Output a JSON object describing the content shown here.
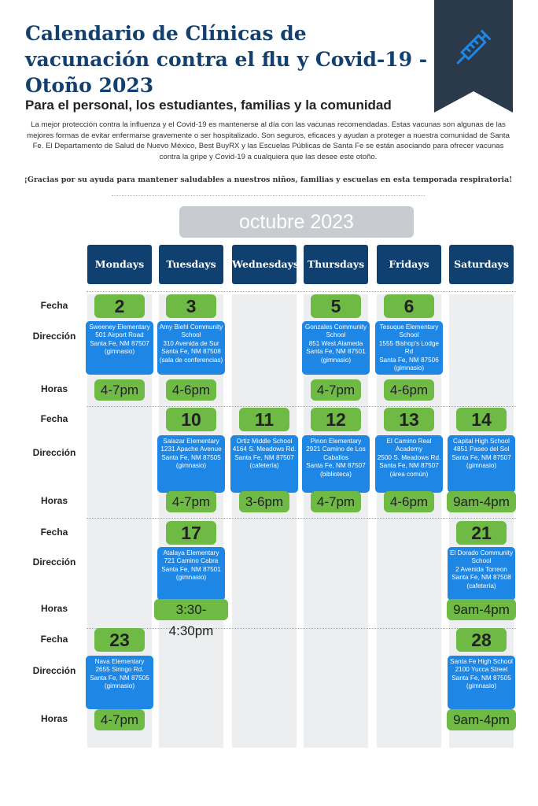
{
  "header": {
    "title": "Calendario de Clínicas de vacunación contra el flu y Covid-19 - Otoño 2023",
    "icon": "syringe-icon",
    "subtitle": "Para el personal, los estudiantes, familias y la comunidad",
    "intro": "La mejor protección contra la influenza y el Covid-19 es mantenerse al día con las vacunas recomendadas. Estas vacunas son algunas de las mejores formas de evitar enfermarse gravemente o ser hospitalizado. Son seguros, eficaces y ayudan a proteger a nuestra comunidad de Santa Fe. El Departamento de Salud de Nuevo México, Best BuyRX y las Escuelas Públicas de Santa Fe se están asociando para ofrecer vacunas contra la gripe y Covid-19 a cualquiera que las desee este otoño.",
    "thanks": "¡Gracias por su ayuda para mantener saludables a nuestros niños, familias y escuelas en esta temporada respiratoria!"
  },
  "calendar": {
    "month": "octubre 2023",
    "days": [
      "Mondays",
      "Tuesdays",
      "Wednesdays",
      "Thursdays",
      "Fridays",
      "Saturdays"
    ],
    "row_labels": {
      "date": "Fecha",
      "address": "Dirección",
      "hours": "Horas"
    },
    "weeks": [
      [
        {
          "day": "Mondays",
          "date": "2",
          "address": "Sweeney Elementary\n501 Airport Road\nSanta Fe, NM 87507\n(gimnasio)",
          "hours": "4-7pm"
        },
        {
          "day": "Tuesdays",
          "date": "3",
          "address": "Amy Biehl Community School\n310 Avenida de Sur\nSanta Fe, NM 87508\n(sala de conferencias)",
          "hours": "4-6pm"
        },
        {
          "day": "Thursdays",
          "date": "5",
          "address": "Gonzales Community School\n851 West Alameda\nSanta Fe, NM 87501\n(gimnasio)",
          "hours": "4-7pm"
        },
        {
          "day": "Fridays",
          "date": "6",
          "address": "Tesuque Elementary School\n1555 Bishop's Lodge Rd\nSanta Fe, NM 87506\n(gimnasio)",
          "hours": "4-6pm"
        }
      ],
      [
        {
          "day": "Tuesdays",
          "date": "10",
          "address": "Salazar Elementary\n1231 Apache Avenue\nSanta Fe, NM 87505\n(gimnasio)",
          "hours": "4-7pm"
        },
        {
          "day": "Wednesdays",
          "date": "11",
          "address": "Ortiz Middle School\n4164 S. Meadows Rd.\nSanta Fe, NM 87507\n(cafetería)",
          "hours": "3-6pm"
        },
        {
          "day": "Thursdays",
          "date": "12",
          "address": "Pinon Elementary\n2921 Camino de Los Caballos\nSanta Fe, NM 87507\n(biblioteca)",
          "hours": "4-7pm"
        },
        {
          "day": "Fridays",
          "date": "13",
          "address": "El Camino Real Academy\n2500 S. Meadows Rd.\nSanta Fe, NM 87507\n(área común)",
          "hours": "4-6pm"
        },
        {
          "day": "Saturdays",
          "date": "14",
          "address": "Capital High School\n4851 Paseo del Sol\nSanta Fe, NM 87507\n(gimnasio)",
          "hours": "9am-4pm"
        }
      ],
      [
        {
          "day": "Tuesdays",
          "date": "17",
          "address": "Atalaya Elementary\n721 Camino Cabra\nSanta Fe, NM 87501\n(gimnasio)",
          "hours": "3:30-4:30pm"
        },
        {
          "day": "Saturdays",
          "date": "21",
          "address": "El Dorado Community School\n2 Avenida Torreon\nSanta Fe, NM 87508\n(cafetería)",
          "hours": "9am-4pm"
        }
      ],
      [
        {
          "day": "Mondays",
          "date": "23",
          "address": "Nava Elementary\n2655 Siringo Rd.\nSanta Fe, NM 87505\n(gimnasio)",
          "hours": "4-7pm"
        },
        {
          "day": "Saturdays",
          "date": "28",
          "address": "Santa Fe High School\n2100 Yucca Street\nSanta Fe, NM 87505\n(gimnasio)",
          "hours": "9am-4pm"
        }
      ]
    ]
  }
}
